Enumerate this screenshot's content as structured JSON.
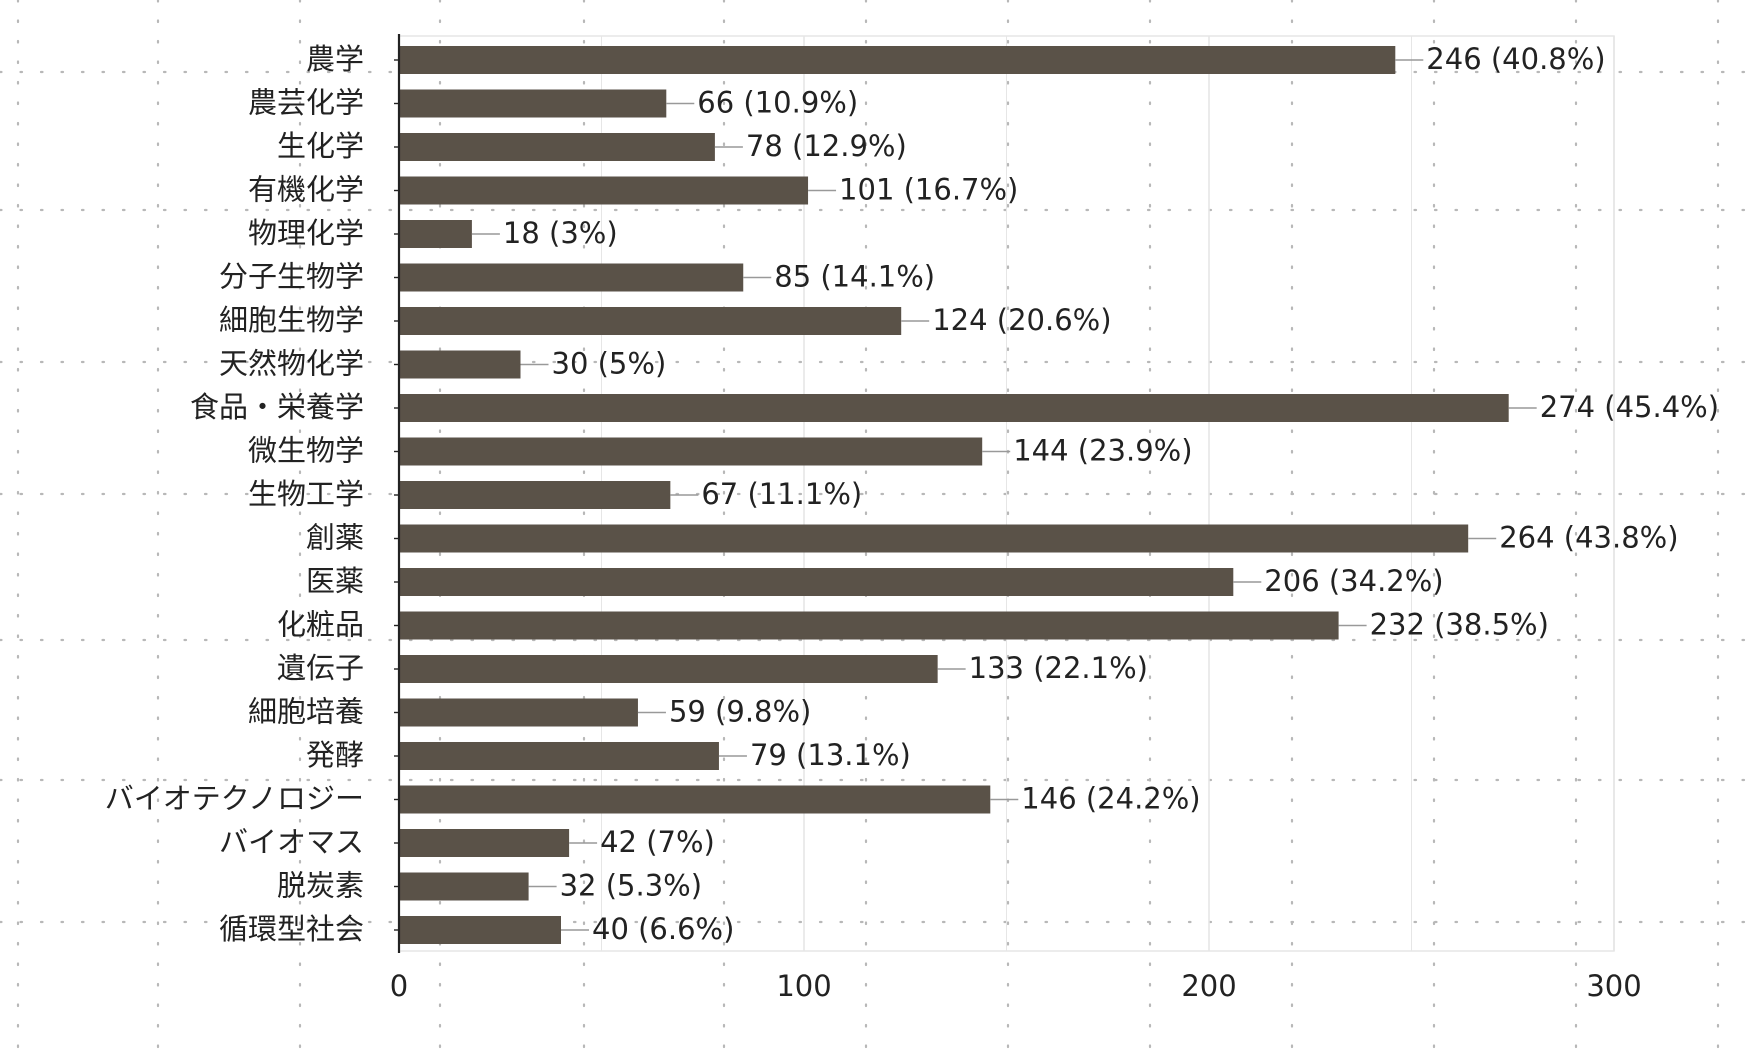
{
  "chart_data": {
    "type": "bar",
    "orientation": "horizontal",
    "categories": [
      "農学",
      "農芸化学",
      "生化学",
      "有機化学",
      "物理化学",
      "分子生物学",
      "細胞生物学",
      "天然物化学",
      "食品・栄養学",
      "微生物学",
      "生物工学",
      "創薬",
      "医薬",
      "化粧品",
      "遺伝子",
      "細胞培養",
      "発酵",
      "バイオテクノロジー",
      "バイオマス",
      "脱炭素",
      "循環型社会"
    ],
    "values": [
      246,
      66,
      78,
      101,
      18,
      85,
      124,
      30,
      274,
      144,
      67,
      264,
      206,
      232,
      133,
      59,
      79,
      146,
      42,
      32,
      40
    ],
    "data_labels": [
      "246 (40.8%)",
      "66 (10.9%)",
      "78 (12.9%)",
      "101 (16.7%)",
      "18 (3%)",
      "85 (14.1%)",
      "124 (20.6%)",
      "30 (5%)",
      "274 (45.4%)",
      "144 (23.9%)",
      "67 (11.1%)",
      "264 (43.8%)",
      "206 (34.2%)",
      "232 (38.5%)",
      "133 (22.1%)",
      "59 (9.8%)",
      "79 (13.1%)",
      "146 (24.2%)",
      "42 (7%)",
      "32 (5.3%)",
      "40 (6.6%)"
    ],
    "xlim": [
      0,
      300
    ],
    "xticks": [
      0,
      100,
      200,
      300
    ],
    "xtick_labels": [
      "0",
      "100",
      "200",
      "300"
    ],
    "title": "",
    "xlabel": "",
    "ylabel": "",
    "grid": true,
    "legend": "none",
    "colors": {
      "bar": "#5a5248",
      "connector": "#999999",
      "text": "#222222",
      "grid": "#e6e6e6",
      "axis": "#222222",
      "dotted_overlay": "#b8b8b8"
    }
  }
}
